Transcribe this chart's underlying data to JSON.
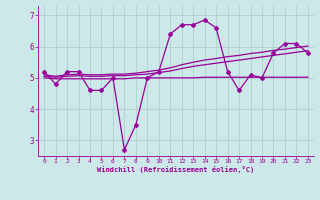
{
  "xlabel": "Windchill (Refroidissement éolien,°C)",
  "xlim": [
    -0.5,
    23.5
  ],
  "ylim": [
    2.5,
    7.3
  ],
  "yticks": [
    3,
    4,
    5,
    6,
    7
  ],
  "xticks": [
    0,
    1,
    2,
    3,
    4,
    5,
    6,
    7,
    8,
    9,
    10,
    11,
    12,
    13,
    14,
    15,
    16,
    17,
    18,
    19,
    20,
    21,
    22,
    23
  ],
  "bg_color": "#cce8e8",
  "grid_color": "#aacccc",
  "line_color": "#990099",
  "line_width": 0.9,
  "marker": "D",
  "marker_size": 2.0,
  "series": [
    [
      5.2,
      4.8,
      5.2,
      5.2,
      4.6,
      4.6,
      5.0,
      2.7,
      3.5,
      5.0,
      5.2,
      6.4,
      6.7,
      6.7,
      6.85,
      6.6,
      5.2,
      4.6,
      5.1,
      5.0,
      5.8,
      6.1,
      6.1,
      5.8
    ],
    [
      5.1,
      5.05,
      5.1,
      5.12,
      5.1,
      5.1,
      5.12,
      5.12,
      5.15,
      5.2,
      5.25,
      5.32,
      5.42,
      5.5,
      5.57,
      5.62,
      5.68,
      5.72,
      5.78,
      5.82,
      5.88,
      5.92,
      5.97,
      6.02
    ],
    [
      5.05,
      5.02,
      5.05,
      5.07,
      5.05,
      5.05,
      5.07,
      5.07,
      5.1,
      5.12,
      5.17,
      5.22,
      5.3,
      5.37,
      5.42,
      5.47,
      5.52,
      5.57,
      5.62,
      5.67,
      5.72,
      5.77,
      5.82,
      5.87
    ],
    [
      5.0,
      4.97,
      4.97,
      4.97,
      4.97,
      4.97,
      4.97,
      4.97,
      5.0,
      5.0,
      5.0,
      5.0,
      5.0,
      5.0,
      5.02,
      5.02,
      5.02,
      5.02,
      5.02,
      5.02,
      5.02,
      5.02,
      5.02,
      5.02
    ]
  ]
}
